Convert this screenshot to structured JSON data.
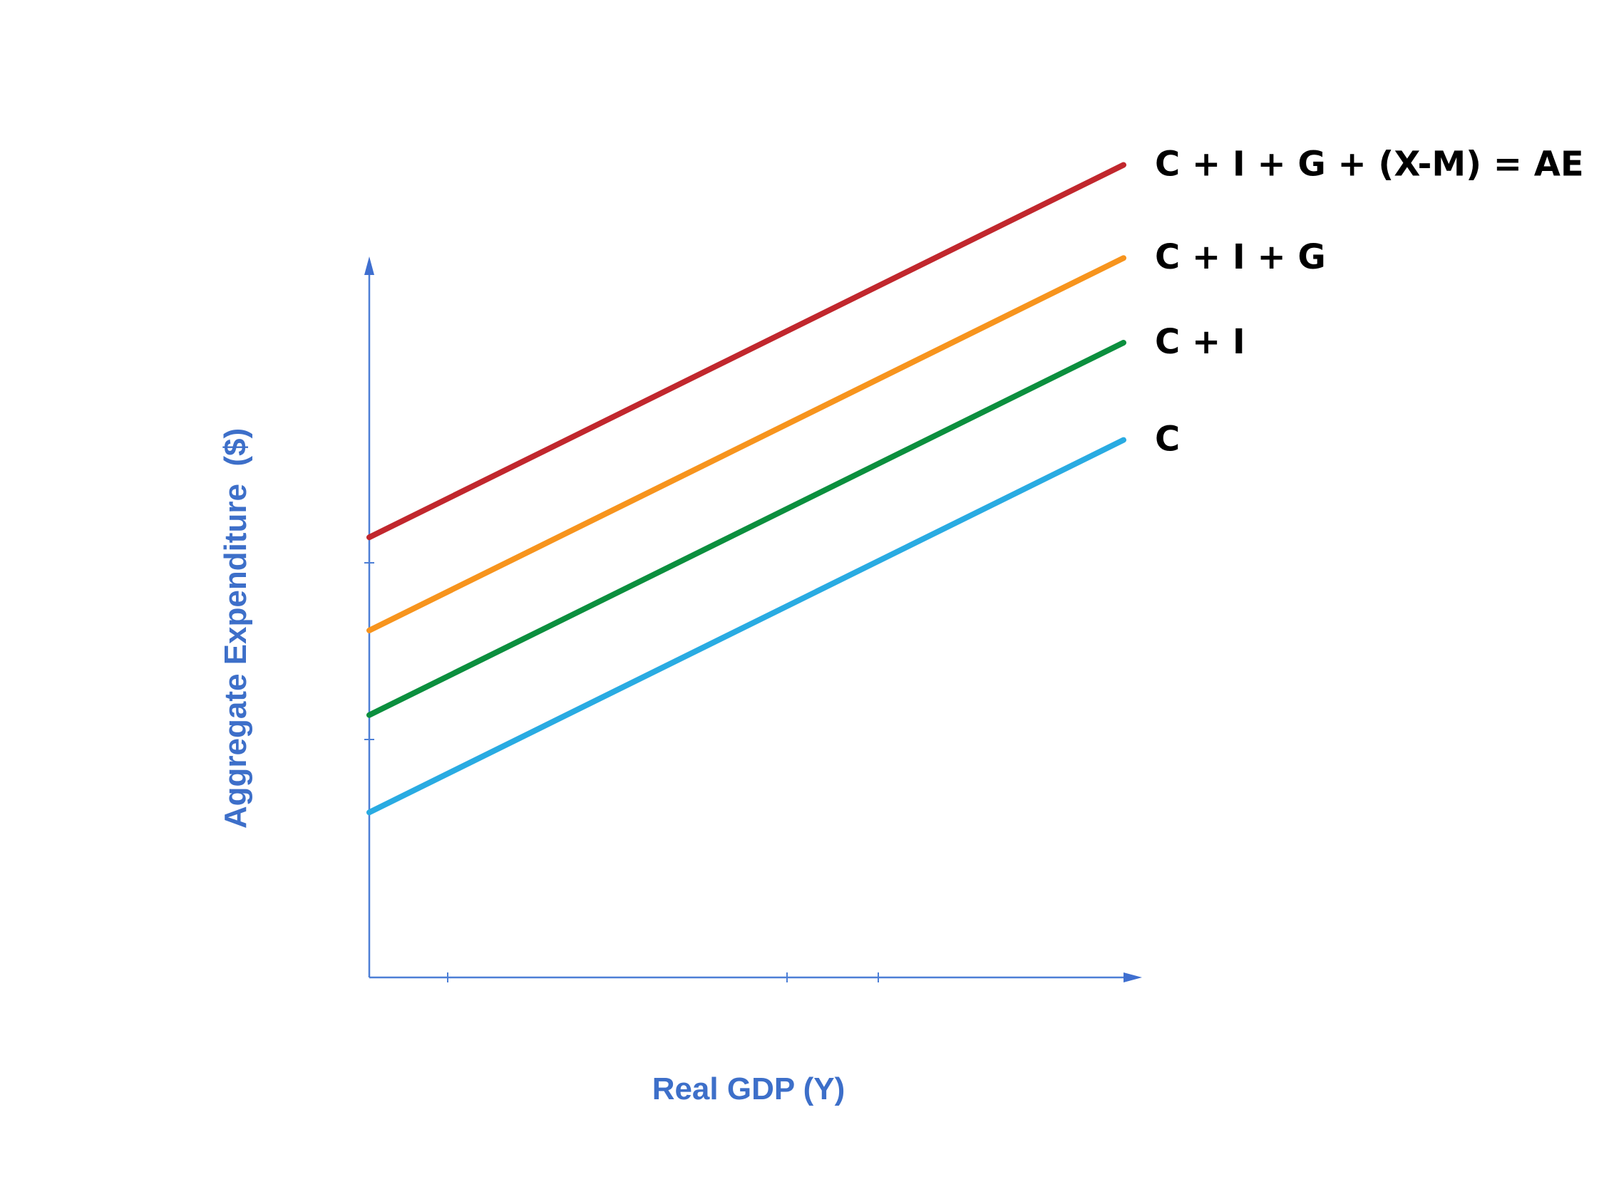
{
  "chart_data": {
    "type": "line",
    "xlabel": "Real GDP (Y)",
    "ylabel": "Aggregate Expenditure  ($)",
    "xlim": [
      0,
      10
    ],
    "ylim": [
      0,
      10
    ],
    "grid": false,
    "legend": "none",
    "series": [
      {
        "name": "C + I + G + (X-M) = AE",
        "color": "#c1272d",
        "x": [
          0,
          10
        ],
        "values": [
          5.2,
          9.6
        ]
      },
      {
        "name": "C + I + G",
        "color": "#f7941d",
        "x": [
          0,
          10
        ],
        "values": [
          4.1,
          8.5
        ]
      },
      {
        "name": "C + I",
        "color": "#0b8f3e",
        "x": [
          0,
          10
        ],
        "values": [
          3.1,
          7.5
        ]
      },
      {
        "name": "C",
        "color": "#29abe2",
        "x": [
          0,
          10
        ],
        "values": [
          1.95,
          6.35
        ]
      }
    ]
  }
}
